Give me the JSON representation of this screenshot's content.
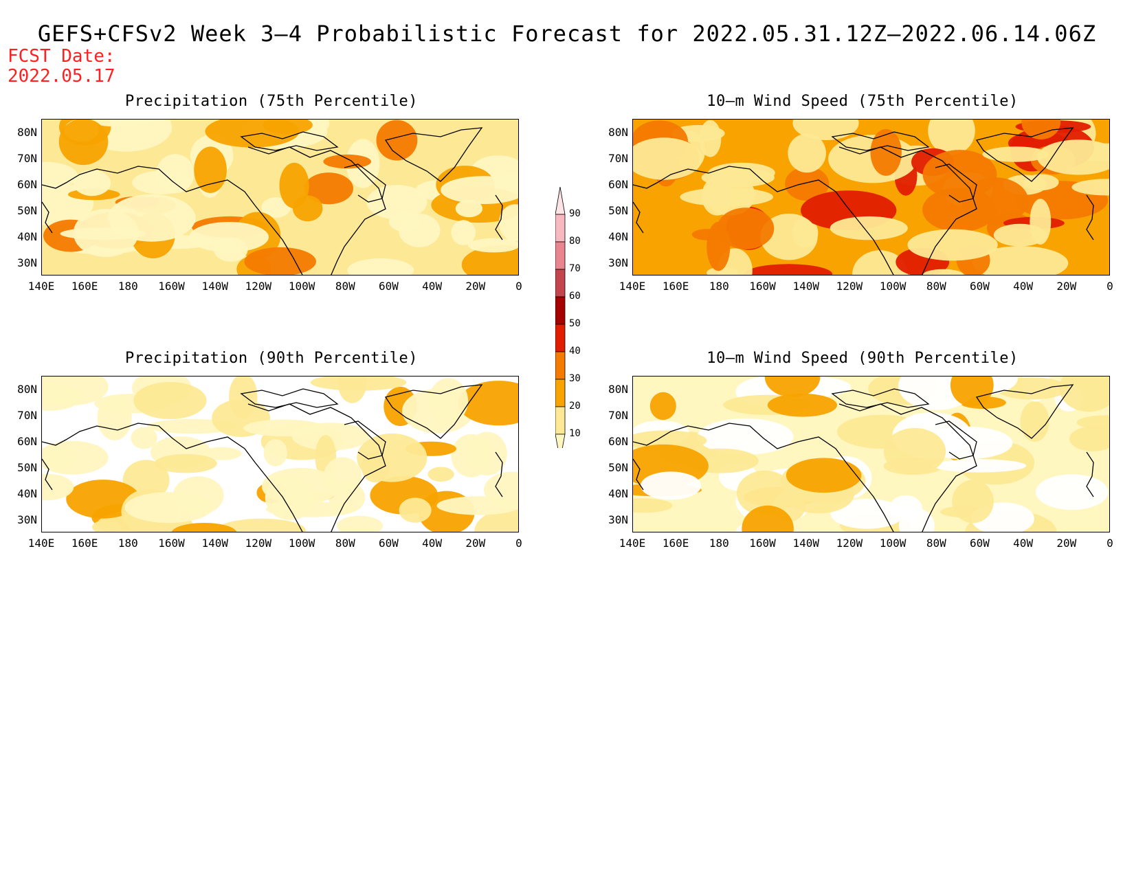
{
  "title": "GEFS+CFSv2 Week 3–4 Probabilistic Forecast for 2022.05.31.12Z–2022.06.14.06Z",
  "fcst_label": "FCST Date:",
  "fcst_date": "2022.05.17",
  "panels": [
    {
      "title": "Precipitation (75th Percentile)",
      "level": "medium",
      "id": "precip-75"
    },
    {
      "title": "10–m Wind Speed (75th Percentile)",
      "level": "high",
      "id": "wind-75"
    },
    {
      "title": "Precipitation (90th Percentile)",
      "level": "low",
      "id": "precip-90"
    },
    {
      "title": "10–m Wind Speed (90th Percentile)",
      "level": "low-mid",
      "id": "wind-90"
    }
  ],
  "lat_labels": [
    "80N",
    "70N",
    "60N",
    "50N",
    "40N",
    "30N"
  ],
  "lon_labels": [
    "140E",
    "160E",
    "180",
    "160W",
    "140W",
    "120W",
    "100W",
    "80W",
    "60W",
    "40W",
    "20W",
    "0"
  ],
  "colorbar": {
    "levels": [
      "10",
      "20",
      "30",
      "40",
      "50",
      "60",
      "70",
      "80",
      "90"
    ],
    "colors": [
      "#fff6c0",
      "#fde995",
      "#f8a300",
      "#f47a00",
      "#e11d00",
      "#a70000",
      "#c4454d",
      "#e8858e",
      "#f7b9bf",
      "#fde3e6"
    ]
  }
}
